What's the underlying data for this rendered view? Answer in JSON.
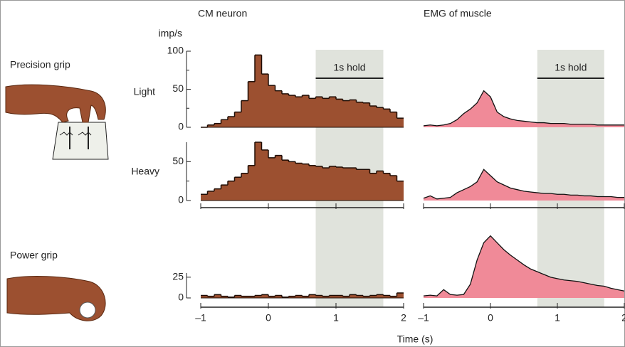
{
  "figure": {
    "columns": [
      "CM neuron",
      "EMG of muscle"
    ],
    "rows": [
      "Precision grip",
      "Power grip"
    ],
    "conditions": [
      "Light",
      "Heavy"
    ],
    "xlabel": "Time (s)"
  },
  "chart_data": [
    {
      "type": "histogram",
      "ylabel": "imp/s",
      "color": "#9c5030",
      "edgecolor": "#1e0c04",
      "bins": [
        -1,
        -0.9,
        -0.8,
        -0.7,
        -0.6,
        -0.5,
        -0.4,
        -0.3,
        -0.2,
        -0.1,
        0,
        0.1,
        0.2,
        0.3,
        0.4,
        0.5,
        0.6,
        0.7,
        0.8,
        0.9,
        1,
        1.1,
        1.2,
        1.3,
        1.4,
        1.5,
        1.6,
        1.7,
        1.8,
        1.9,
        2
      ],
      "counts": [
        0,
        3,
        5,
        10,
        14,
        20,
        35,
        60,
        95,
        70,
        55,
        48,
        44,
        42,
        40,
        42,
        38,
        40,
        38,
        40,
        37,
        35,
        36,
        33,
        32,
        28,
        26,
        24,
        20,
        12
      ],
      "xlim": [
        -1,
        2
      ],
      "ylim": [
        0,
        100
      ],
      "yticks": [
        0,
        50,
        100
      ],
      "yminor": [
        25,
        75
      ],
      "hold": [
        0.7,
        1.7
      ],
      "hold_color": "#e0e3dc",
      "annotation": "1s hold"
    },
    {
      "type": "histogram",
      "color": "#9c5030",
      "edgecolor": "#1e0c04",
      "bins": [
        -1,
        -0.9,
        -0.8,
        -0.7,
        -0.6,
        -0.5,
        -0.4,
        -0.3,
        -0.2,
        -0.1,
        0,
        0.1,
        0.2,
        0.3,
        0.4,
        0.5,
        0.6,
        0.7,
        0.8,
        0.9,
        1,
        1.1,
        1.2,
        1.3,
        1.4,
        1.5,
        1.6,
        1.7,
        1.8,
        1.9,
        2
      ],
      "counts": [
        8,
        12,
        15,
        20,
        25,
        30,
        35,
        45,
        75,
        65,
        55,
        58,
        52,
        50,
        48,
        47,
        45,
        44,
        42,
        44,
        43,
        42,
        42,
        40,
        40,
        35,
        38,
        35,
        32,
        25
      ],
      "xlim": [
        -1,
        2
      ],
      "ylim": [
        0,
        75
      ],
      "yticks": [
        0,
        50
      ],
      "yminor": [
        25
      ],
      "xticks": [
        -1,
        0,
        1,
        2
      ]
    },
    {
      "type": "histogram",
      "color": "#9c5030",
      "edgecolor": "#1e0c04",
      "bins": [
        -1,
        -0.9,
        -0.8,
        -0.7,
        -0.6,
        -0.5,
        -0.4,
        -0.3,
        -0.2,
        -0.1,
        0,
        0.1,
        0.2,
        0.3,
        0.4,
        0.5,
        0.6,
        0.7,
        0.8,
        0.9,
        1,
        1.1,
        1.2,
        1.3,
        1.4,
        1.5,
        1.6,
        1.7,
        1.8,
        1.9,
        2
      ],
      "counts": [
        3,
        2,
        4,
        2,
        1,
        3,
        2,
        2,
        3,
        4,
        2,
        3,
        1,
        2,
        3,
        2,
        4,
        3,
        2,
        3,
        3,
        2,
        4,
        3,
        2,
        3,
        4,
        3,
        2,
        6
      ],
      "xlim": [
        -1,
        2
      ],
      "ylim": [
        0,
        30
      ],
      "yticks": [
        0,
        25
      ],
      "xticks": [
        {
          "value": -1,
          "label": "–1"
        },
        0,
        1,
        2
      ]
    },
    {
      "type": "area",
      "color": "#f08a98",
      "linecolor": "#111111",
      "x": [
        -1,
        -0.9,
        -0.8,
        -0.7,
        -0.6,
        -0.5,
        -0.4,
        -0.3,
        -0.2,
        -0.1,
        0,
        0.1,
        0.2,
        0.3,
        0.4,
        0.5,
        0.6,
        0.7,
        0.8,
        0.9,
        1,
        1.1,
        1.2,
        1.3,
        1.4,
        1.5,
        1.6,
        1.7,
        1.8,
        1.9,
        2
      ],
      "values": [
        2,
        3,
        2,
        3,
        5,
        10,
        18,
        24,
        32,
        48,
        40,
        20,
        14,
        11,
        9,
        8,
        7,
        6,
        6,
        5,
        5,
        5,
        4,
        4,
        4,
        4,
        3,
        3,
        3,
        3,
        3
      ],
      "xlim": [
        -1,
        2
      ],
      "ylim": [
        0,
        100
      ],
      "hold": [
        0.7,
        1.7
      ],
      "hold_color": "#e0e3dc",
      "annotation": "1s hold"
    },
    {
      "type": "area",
      "color": "#f08a98",
      "linecolor": "#111111",
      "x": [
        -1,
        -0.9,
        -0.8,
        -0.7,
        -0.6,
        -0.5,
        -0.4,
        -0.3,
        -0.2,
        -0.1,
        0,
        0.1,
        0.2,
        0.3,
        0.4,
        0.5,
        0.6,
        0.7,
        0.8,
        0.9,
        1,
        1.1,
        1.2,
        1.3,
        1.4,
        1.5,
        1.6,
        1.7,
        1.8,
        1.9,
        2
      ],
      "values": [
        3,
        6,
        2,
        3,
        4,
        10,
        14,
        18,
        24,
        40,
        32,
        24,
        20,
        16,
        14,
        12,
        11,
        10,
        9,
        9,
        8,
        8,
        7,
        7,
        6,
        6,
        5,
        5,
        5,
        4,
        4
      ],
      "xlim": [
        -1,
        2
      ],
      "ylim": [
        0,
        75
      ],
      "xticks": [
        -1,
        0,
        1,
        2
      ]
    },
    {
      "type": "area",
      "color": "#f08a98",
      "linecolor": "#111111",
      "x": [
        -1,
        -0.9,
        -0.8,
        -0.7,
        -0.6,
        -0.5,
        -0.4,
        -0.3,
        -0.2,
        -0.1,
        0,
        0.1,
        0.2,
        0.3,
        0.4,
        0.5,
        0.6,
        0.7,
        0.8,
        0.9,
        1,
        1.1,
        1.2,
        1.3,
        1.4,
        1.5,
        1.6,
        1.7,
        1.8,
        1.9,
        2
      ],
      "values": [
        3,
        4,
        3,
        12,
        5,
        4,
        5,
        20,
        55,
        80,
        90,
        80,
        70,
        62,
        55,
        48,
        42,
        38,
        34,
        30,
        28,
        26,
        25,
        24,
        22,
        20,
        18,
        17,
        14,
        12,
        10
      ],
      "xlim": [
        -1,
        2
      ],
      "ylim": [
        0,
        100
      ],
      "xticks": [
        {
          "value": -1,
          "label": "–1"
        },
        0,
        1,
        2
      ]
    }
  ]
}
